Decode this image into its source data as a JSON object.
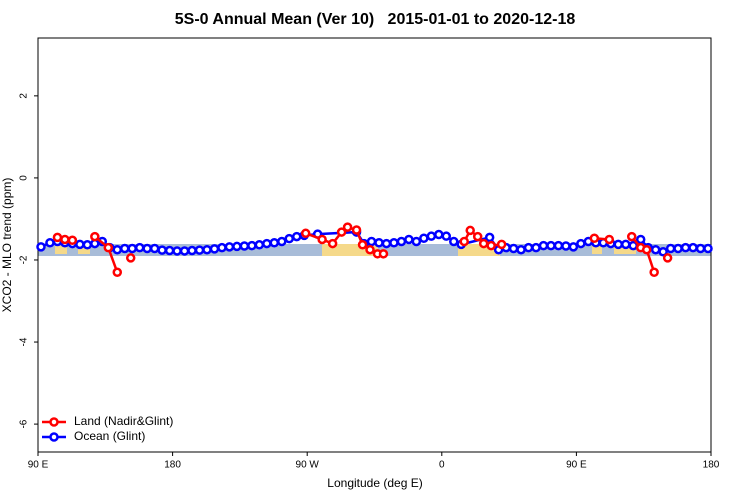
{
  "chart_data": {
    "type": "line",
    "title": "5S-0 Annual Mean (Ver 10)   2015-01-01 to 2020-12-18",
    "x_label": "Longitude (deg E)",
    "y_label": "XCO2 - MLO trend (ppm)",
    "xlim": [
      90,
      540
    ],
    "ylim": [
      -6.68,
      3.41
    ],
    "xticks": [
      {
        "value": 90,
        "label": "90 E"
      },
      180,
      {
        "value": 270,
        "label": "90 W"
      },
      {
        "value": 360,
        "label": "0"
      },
      {
        "value": 450,
        "label": "90 E"
      },
      {
        "value": 540,
        "label": "180"
      }
    ],
    "yticks": [
      -6,
      -4,
      -2,
      0,
      2
    ],
    "legend": "bottom-left",
    "series": [
      {
        "name": "Ocean (Glint)",
        "color": "#0000ff",
        "x": [
          92,
          98,
          103,
          108,
          113,
          118,
          123,
          128,
          133,
          138,
          143,
          148,
          153,
          158,
          163,
          168,
          173,
          178,
          183,
          188,
          193,
          198,
          203,
          208,
          213,
          218,
          223,
          228,
          233,
          238,
          243,
          248,
          253,
          258,
          263,
          268,
          277,
          303,
          308,
          313,
          318,
          323,
          328,
          333,
          338,
          343,
          348,
          353,
          358,
          363,
          368,
          373,
          392,
          398,
          403,
          408,
          413,
          418,
          423,
          428,
          433,
          438,
          443,
          448,
          453,
          458,
          463,
          468,
          473,
          478,
          483,
          488,
          493,
          498,
          503,
          508,
          513,
          518,
          523,
          528,
          533,
          538
        ],
        "values": [
          -1.68,
          -1.58,
          -1.55,
          -1.58,
          -1.6,
          -1.62,
          -1.63,
          -1.6,
          -1.55,
          -1.7,
          -1.75,
          -1.72,
          -1.72,
          -1.7,
          -1.72,
          -1.72,
          -1.76,
          -1.77,
          -1.78,
          -1.78,
          -1.77,
          -1.76,
          -1.75,
          -1.73,
          -1.7,
          -1.68,
          -1.67,
          -1.66,
          -1.65,
          -1.63,
          -1.6,
          -1.58,
          -1.55,
          -1.48,
          -1.43,
          -1.4,
          -1.37,
          -1.32,
          -1.6,
          -1.55,
          -1.58,
          -1.6,
          -1.58,
          -1.55,
          -1.5,
          -1.55,
          -1.47,
          -1.42,
          -1.38,
          -1.42,
          -1.55,
          -1.62,
          -1.45,
          -1.75,
          -1.7,
          -1.72,
          -1.75,
          -1.7,
          -1.7,
          -1.65,
          -1.65,
          -1.65,
          -1.66,
          -1.68,
          -1.6,
          -1.55,
          -1.58,
          -1.58,
          -1.6,
          -1.62,
          -1.62,
          -1.65,
          -1.5,
          -1.7,
          -1.75,
          -1.8,
          -1.72,
          -1.72,
          -1.7,
          -1.7,
          -1.72,
          -1.72
        ]
      },
      {
        "name": "Land (Nadir&Glint)",
        "color": "#ff0000",
        "x": [
          103,
          108,
          113,
          120,
          128,
          137,
          143,
          148,
          152,
          260,
          269,
          280,
          287,
          293,
          297,
          303,
          307,
          312,
          317,
          321,
          370,
          375,
          379,
          384,
          388,
          393,
          400,
          455,
          462,
          472,
          480,
          487,
          493,
          497,
          502,
          507,
          511
        ],
        "values": [
          -1.45,
          -1.5,
          -1.52,
          null,
          -1.43,
          -1.7,
          -2.3,
          null,
          -1.95,
          null,
          -1.35,
          -1.5,
          -1.6,
          -1.32,
          -1.2,
          -1.27,
          -1.63,
          -1.75,
          -1.85,
          -1.85,
          null,
          -1.55,
          -1.28,
          -1.43,
          -1.6,
          -1.65,
          -1.62,
          null,
          -1.47,
          -1.5,
          null,
          -1.43,
          -1.7,
          -1.75,
          -2.3,
          null,
          -1.95
        ]
      }
    ]
  }
}
